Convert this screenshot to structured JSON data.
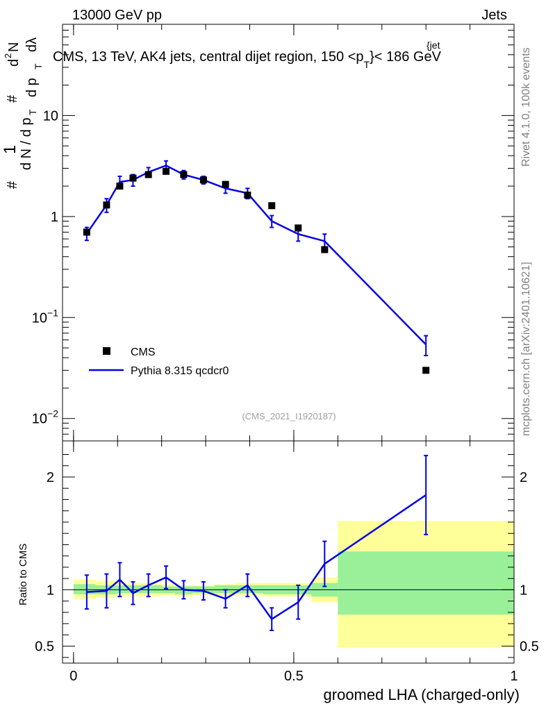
{
  "header": {
    "energy_label": "13000 GeV pp",
    "category_label": "Jets"
  },
  "side_labels": {
    "rivet": "Rivet 4.1.0,  100k events",
    "source": "mcplots.cern.ch [arXiv:2401.10621]"
  },
  "chart_data": [
    {
      "type": "scatter",
      "panel": "main",
      "title_prefix": "CMS, 13 TeV, AK4 jets, central dijet region, 150 <p",
      "title_sup": "{jet",
      "title_sub": "T",
      "title_suffix": "}< 186 GeV",
      "ylabel_parts": [
        "#",
        "1",
        "d N / d p",
        "T",
        "#",
        "d",
        "2",
        "N",
        "d p",
        "T",
        "dλ"
      ],
      "analysis_id": "(CMS_2021_I1920187)",
      "yscale": "log",
      "ylim": [
        0.006,
        80
      ],
      "xlim": [
        -0.025,
        1.0
      ],
      "y_ticks": [
        {
          "value": 10,
          "base": "10",
          "exp": ""
        },
        {
          "value": 1,
          "base": "1",
          "exp": ""
        },
        {
          "value": 0.1,
          "base": "10",
          "exp": "−1"
        },
        {
          "value": 0.01,
          "base": "10",
          "exp": "−2"
        }
      ],
      "legend": [
        {
          "name": "CMS",
          "marker": "square",
          "color": "#000000"
        },
        {
          "name": "Pythia 8.315 qcdcr0",
          "marker": "line",
          "color": "#0000e6"
        }
      ],
      "series": [
        {
          "name": "CMS",
          "x": [
            0.03,
            0.075,
            0.105,
            0.135,
            0.17,
            0.21,
            0.25,
            0.295,
            0.345,
            0.395,
            0.45,
            0.51,
            0.57,
            0.8
          ],
          "y": [
            0.7,
            1.3,
            2.0,
            2.4,
            2.6,
            2.8,
            2.6,
            2.3,
            2.08,
            1.63,
            1.28,
            0.77,
            0.47,
            0.03
          ]
        },
        {
          "name": "Pythia 8.315 qcdcr0",
          "x": [
            0.03,
            0.075,
            0.105,
            0.135,
            0.17,
            0.21,
            0.25,
            0.295,
            0.345,
            0.395,
            0.45,
            0.51,
            0.57,
            0.8
          ],
          "y": [
            0.68,
            1.3,
            2.2,
            2.3,
            2.75,
            3.2,
            2.6,
            2.3,
            1.9,
            1.7,
            0.9,
            0.67,
            0.57,
            0.054
          ],
          "err_up": [
            0.1,
            0.2,
            0.3,
            0.3,
            0.3,
            0.35,
            0.25,
            0.2,
            0.2,
            0.2,
            0.12,
            0.1,
            0.1,
            0.012
          ],
          "err_down": [
            0.1,
            0.2,
            0.3,
            0.3,
            0.3,
            0.35,
            0.25,
            0.2,
            0.2,
            0.2,
            0.12,
            0.1,
            0.1,
            0.012
          ]
        }
      ]
    },
    {
      "type": "line",
      "panel": "ratio",
      "ylabel": "Ratio to CMS",
      "xlabel": "groomed LHA (charged-only)",
      "ylim": [
        0.35,
        2.32
      ],
      "xlim": [
        -0.025,
        1.0
      ],
      "x_ticks": [
        {
          "value": 0,
          "label": "0"
        },
        {
          "value": 0.5,
          "label": "0.5"
        },
        {
          "value": 1,
          "label": "1"
        }
      ],
      "y_ticks": [
        {
          "value": 2,
          "label": "2"
        },
        {
          "value": 1,
          "label": "1"
        },
        {
          "value": 0.5,
          "label": "0.5"
        }
      ],
      "reference": 1.0,
      "uncertainty_bands": [
        {
          "x0": 0.0,
          "x1": 0.05,
          "inner": [
            0.96,
            1.05
          ],
          "outer": [
            0.92,
            1.09
          ]
        },
        {
          "x0": 0.05,
          "x1": 0.1,
          "inner": [
            0.96,
            1.04
          ],
          "outer": [
            0.93,
            1.08
          ]
        },
        {
          "x0": 0.1,
          "x1": 0.2,
          "inner": [
            0.97,
            1.04
          ],
          "outer": [
            0.94,
            1.06
          ]
        },
        {
          "x0": 0.2,
          "x1": 0.23,
          "inner": [
            0.97,
            1.03
          ],
          "outer": [
            0.95,
            1.05
          ]
        },
        {
          "x0": 0.23,
          "x1": 0.27,
          "inner": [
            0.96,
            1.03
          ],
          "outer": [
            0.94,
            1.04
          ]
        },
        {
          "x0": 0.27,
          "x1": 0.32,
          "inner": [
            0.97,
            1.03
          ],
          "outer": [
            0.95,
            1.04
          ]
        },
        {
          "x0": 0.32,
          "x1": 0.37,
          "inner": [
            0.97,
            1.04
          ],
          "outer": [
            0.95,
            1.05
          ]
        },
        {
          "x0": 0.37,
          "x1": 0.43,
          "inner": [
            0.97,
            1.04
          ],
          "outer": [
            0.95,
            1.06
          ]
        },
        {
          "x0": 0.43,
          "x1": 0.54,
          "inner": [
            0.96,
            1.04
          ],
          "outer": [
            0.94,
            1.06
          ]
        },
        {
          "x0": 0.54,
          "x1": 0.6,
          "inner": [
            0.94,
            1.06
          ],
          "outer": [
            0.89,
            1.11
          ]
        },
        {
          "x0": 0.6,
          "x1": 1.0,
          "inner": [
            0.78,
            1.34
          ],
          "outer": [
            0.49,
            1.61
          ]
        }
      ],
      "series": [
        {
          "name": "Pythia 8.315 qcdcr0",
          "x": [
            0.03,
            0.075,
            0.105,
            0.135,
            0.17,
            0.21,
            0.25,
            0.295,
            0.345,
            0.395,
            0.45,
            0.51,
            0.57,
            0.8
          ],
          "y": [
            0.98,
            0.99,
            1.09,
            0.97,
            1.04,
            1.11,
            1.0,
            0.99,
            0.92,
            1.04,
            0.74,
            0.89,
            1.23,
            1.84
          ],
          "err_up": [
            0.15,
            0.15,
            0.15,
            0.1,
            0.1,
            0.1,
            0.08,
            0.08,
            0.08,
            0.1,
            0.1,
            0.15,
            0.2,
            0.35
          ],
          "err_down": [
            0.15,
            0.15,
            0.15,
            0.1,
            0.1,
            0.1,
            0.08,
            0.08,
            0.08,
            0.1,
            0.1,
            0.15,
            0.2,
            0.35
          ]
        }
      ]
    }
  ],
  "colors": {
    "mc_line": "#0000e6",
    "data_marker": "#000000",
    "band_inner": "#99f099",
    "band_outer": "#ffff99",
    "label_gray": "#808080"
  }
}
